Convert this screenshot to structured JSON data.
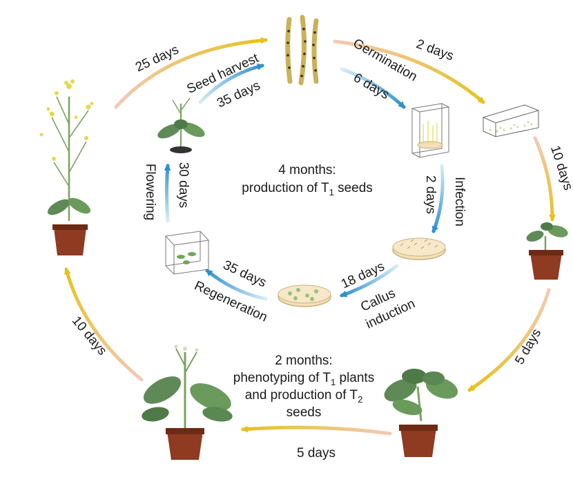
{
  "outer_cycle": {
    "arrow_color_start": "#f2c9b8",
    "arrow_color_end": "#e6c21a",
    "labels": {
      "top_left": "25 days",
      "top_right": "2 days",
      "right_upper": "10 days",
      "right_lower": "5 days",
      "bottom": "5 days",
      "left": "10 days"
    }
  },
  "inner_cycle": {
    "arrow_color_start": "#d7ecf6",
    "arrow_color_end": "#2f8fcf",
    "labels": {
      "seed_harvest": "Seed harvest",
      "seed_harvest_days": "35 days",
      "germination": "Germination",
      "germination_days": "6 days",
      "infection": "Infection",
      "infection_days": "2 days",
      "callus_days": "18 days",
      "callus_1": "Callus",
      "callus_2": "induction",
      "regeneration_days": "35 days",
      "regeneration": "Regeneration",
      "flowering": "Flowering",
      "flowering_days": "30 days"
    }
  },
  "center": {
    "line1": "4 months:",
    "line2_prefix": "production of T",
    "line2_sub": "1",
    "line2_suffix": " seeds"
  },
  "middle": {
    "line1": "2 months:",
    "line2_prefix": "phenotyping of T",
    "line2_sub": "1",
    "line2_suffix": " plants",
    "line3_prefix": "and production of T",
    "line3_sub": "2",
    "line4": "seeds"
  },
  "colors": {
    "pot": "#8e3b21",
    "pot_rim": "#6e2a15",
    "leaf": "#5f8a57",
    "stem": "#7aa35f",
    "flower": "#e8d84a",
    "pod": "#c9b25a",
    "agar": "#f3dfb8"
  }
}
